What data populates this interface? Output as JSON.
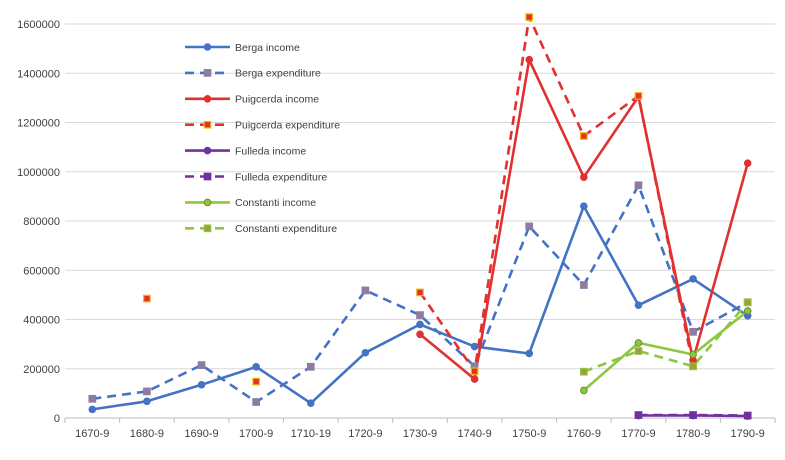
{
  "chart_data": {
    "type": "line",
    "title": "",
    "xlabel": "",
    "ylabel": "",
    "ylim": [
      0,
      1600000
    ],
    "y_ticks": [
      "0",
      "200000",
      "400000",
      "600000",
      "800000",
      "1000000",
      "1200000",
      "1400000",
      "1600000"
    ],
    "categories": [
      "1670-9",
      "1680-9",
      "1690-9",
      "1700-9",
      "1710-19",
      "1720-9",
      "1730-9",
      "1740-9",
      "1750-9",
      "1760-9",
      "1770-9",
      "1780-9",
      "1790-9"
    ],
    "grid": true,
    "legend_position": "top-left",
    "series": [
      {
        "name": "Berga income",
        "color": "#4472C4",
        "dash": "solid",
        "marker": "circle",
        "marker_fill": "#4472C4",
        "marker_stroke": "#4472C4",
        "values": [
          35000,
          68000,
          135000,
          208000,
          60000,
          265000,
          380000,
          290000,
          262000,
          860000,
          458000,
          565000,
          415000
        ]
      },
      {
        "name": "Berga expenditure",
        "color": "#4472C4",
        "dash": "dashed",
        "marker": "square",
        "marker_fill": "#8E7CA0",
        "marker_stroke": "#8E7CA0",
        "values": [
          78000,
          108000,
          215000,
          65000,
          208000,
          518000,
          418000,
          210000,
          778000,
          540000,
          945000,
          350000,
          470000
        ]
      },
      {
        "name": "Puigcerda income",
        "color": "#E03130",
        "dash": "solid",
        "marker": "circle",
        "marker_fill": "#E03130",
        "marker_stroke": "#E03130",
        "values": [
          null,
          null,
          null,
          null,
          null,
          null,
          340000,
          158000,
          1455000,
          978000,
          1305000,
          235000,
          1035000
        ]
      },
      {
        "name": "Puigcerda expenditure",
        "color": "#E03130",
        "dash": "dashed",
        "marker": "square",
        "marker_fill": "#E03130",
        "marker_stroke": "#F2B705",
        "values": [
          null,
          485000,
          null,
          148000,
          null,
          null,
          510000,
          190000,
          1628000,
          1145000,
          1308000,
          210000,
          null
        ]
      },
      {
        "name": "Fulleda income",
        "color": "#7030A0",
        "dash": "solid",
        "marker": "circle",
        "marker_fill": "#7030A0",
        "marker_stroke": "#7030A0",
        "values": [
          null,
          null,
          null,
          null,
          null,
          null,
          null,
          null,
          null,
          null,
          10000,
          10000,
          8000
        ]
      },
      {
        "name": "Fulleda expenditure",
        "color": "#7030A0",
        "dash": "dashed",
        "marker": "square",
        "marker_fill": "#7030A0",
        "marker_stroke": "#7030A0",
        "values": [
          null,
          null,
          null,
          null,
          null,
          null,
          null,
          null,
          null,
          null,
          12000,
          12000,
          10000
        ]
      },
      {
        "name": "Constanti income",
        "color": "#8DC63F",
        "dash": "solid",
        "marker": "circle",
        "marker_fill": "#8DC63F",
        "marker_stroke": "#6A8F2A",
        "values": [
          null,
          null,
          null,
          null,
          null,
          null,
          null,
          null,
          null,
          112000,
          305000,
          258000,
          435000
        ]
      },
      {
        "name": "Constanti expenditure",
        "color": "#8DC63F",
        "dash": "dashed",
        "marker": "square",
        "marker_fill": "#A89A3A",
        "marker_stroke": "#8DC63F",
        "values": [
          null,
          null,
          null,
          null,
          null,
          null,
          null,
          null,
          null,
          188000,
          272000,
          210000,
          470000
        ]
      }
    ]
  }
}
